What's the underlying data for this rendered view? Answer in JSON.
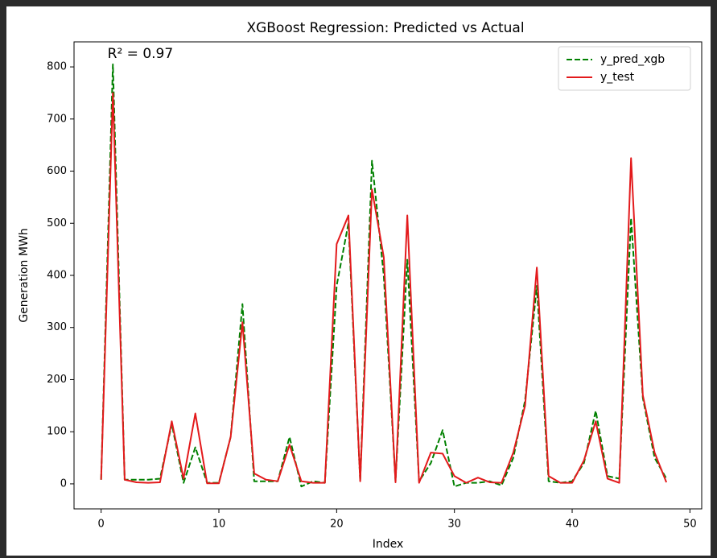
{
  "chart_data": {
    "type": "line",
    "title": "XGBoost Regression: Predicted vs Actual",
    "xlabel": "Index",
    "ylabel": "Generation MWh",
    "annotation": "R² = 0.97",
    "x": [
      0,
      1,
      2,
      3,
      4,
      5,
      6,
      7,
      8,
      9,
      10,
      11,
      12,
      13,
      14,
      15,
      16,
      17,
      18,
      19,
      20,
      21,
      22,
      23,
      24,
      25,
      26,
      27,
      28,
      29,
      30,
      31,
      32,
      33,
      34,
      35,
      36,
      37,
      38,
      39,
      40,
      41,
      42,
      43,
      44,
      45,
      46,
      47,
      48
    ],
    "series": [
      {
        "name": "y_pred_xgb",
        "color": "#008000",
        "linestyle": "dashed",
        "values": [
          8,
          805,
          8,
          8,
          8,
          10,
          115,
          2,
          70,
          2,
          2,
          90,
          345,
          5,
          5,
          5,
          90,
          -5,
          5,
          2,
          380,
          500,
          5,
          620,
          400,
          5,
          430,
          5,
          40,
          103,
          -5,
          2,
          2,
          5,
          -3,
          50,
          160,
          380,
          5,
          2,
          5,
          40,
          140,
          15,
          10,
          510,
          165,
          50,
          10
        ]
      },
      {
        "name": "y_test",
        "color": "#e31a1c",
        "linestyle": "solid",
        "values": [
          8,
          750,
          8,
          3,
          2,
          3,
          120,
          10,
          135,
          1,
          1,
          90,
          310,
          20,
          8,
          5,
          75,
          5,
          2,
          2,
          460,
          515,
          5,
          565,
          435,
          3,
          515,
          2,
          60,
          58,
          15,
          2,
          12,
          3,
          2,
          60,
          150,
          415,
          15,
          2,
          2,
          45,
          120,
          10,
          2,
          625,
          170,
          60,
          3
        ]
      }
    ],
    "xlim": [
      -2.3,
      51
    ],
    "ylim": [
      -48,
      848
    ],
    "xticks": [
      0,
      10,
      20,
      30,
      40,
      50
    ],
    "yticks": [
      0,
      100,
      200,
      300,
      400,
      500,
      600,
      700,
      800
    ],
    "legend": "upper right"
  }
}
